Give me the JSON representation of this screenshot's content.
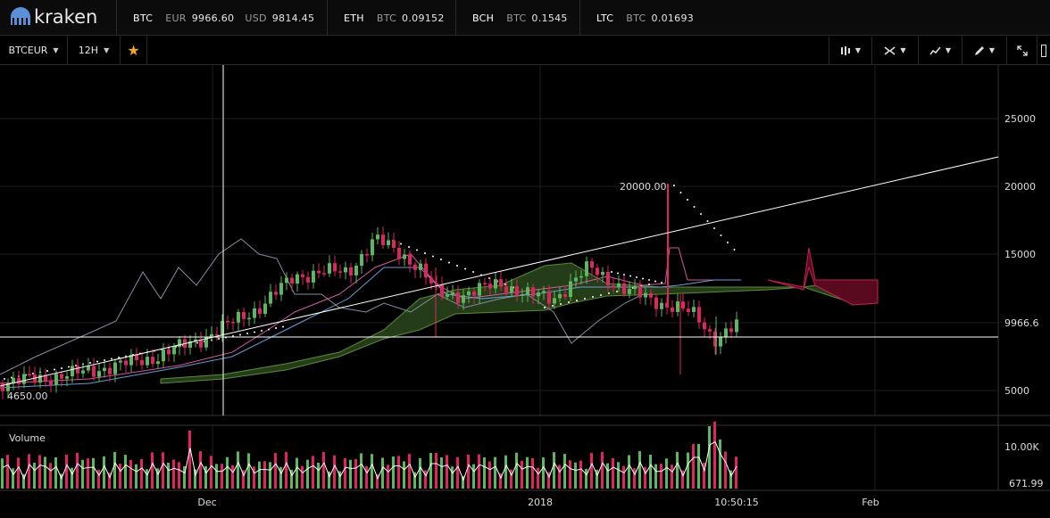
{
  "app": {
    "logo_text": "kraken"
  },
  "tickers": [
    {
      "symbol": "BTC",
      "pairs": [
        {
          "currency": "EUR",
          "value": "9966.60"
        },
        {
          "currency": "USD",
          "value": "9814.45"
        }
      ]
    },
    {
      "symbol": "ETH",
      "pairs": [
        {
          "currency": "BTC",
          "value": "0.09152"
        }
      ]
    },
    {
      "symbol": "BCH",
      "pairs": [
        {
          "currency": "BTC",
          "value": "0.1545"
        }
      ]
    },
    {
      "symbol": "LTC",
      "pairs": [
        {
          "currency": "BTC",
          "value": "0.01693"
        }
      ]
    }
  ],
  "toolbar": {
    "pair_label": "BTCEUR",
    "interval_label": "12H",
    "favorite_icon": "star-icon",
    "tool_icons": [
      "candle-type-icon",
      "indicators-icon",
      "compare-icon",
      "draw-icon",
      "fullscreen-icon"
    ]
  },
  "chart_data": {
    "type": "candlestick",
    "price_axis_ticks": [
      "25000",
      "20000",
      "15000",
      "9966.6",
      "5000"
    ],
    "current_price_label": "9966.6",
    "high_label": "20000.00",
    "low_label": "4650.00",
    "time_axis_ticks": [
      "Dec",
      "2018",
      "10:50:15",
      "Feb"
    ],
    "volume_label": "Volume",
    "volume_axis_ticks": [
      "10.00K",
      "671.99"
    ],
    "ylim": [
      3000,
      27000
    ],
    "colors": {
      "up": "#5cb85c",
      "down": "#e0245e",
      "cloud_green": "#2d4a1e",
      "cloud_red": "#5a0a1e"
    }
  }
}
